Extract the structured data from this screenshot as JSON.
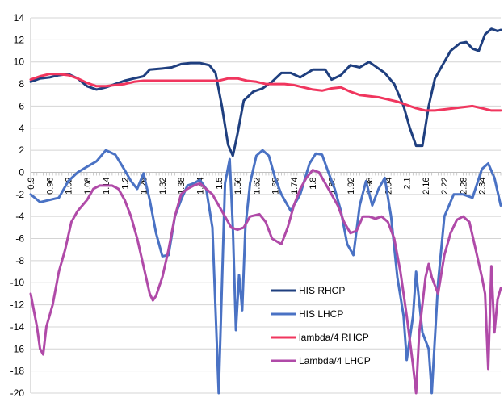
{
  "chart_data": {
    "type": "line",
    "title": "",
    "xlabel": "",
    "ylabel": "",
    "ylim": [
      -20,
      15
    ],
    "xlim": [
      0.9,
      2.4
    ],
    "yticks": [
      14,
      12,
      10,
      8,
      6,
      4,
      2,
      0,
      -2,
      -4,
      -6,
      -8,
      -10,
      -12,
      -14,
      -16,
      -18,
      -20
    ],
    "xtick_labels": [
      "0.9",
      "0.96",
      "1.02",
      "1.08",
      "1.14",
      "1.2",
      "1.26",
      "1.32",
      "1.38",
      "1.44",
      "1.5",
      "1.56",
      "1.62",
      "1.68",
      "1.74",
      "1.8",
      "1.86",
      "1.92",
      "1.98",
      "2.04",
      "2.1",
      "2.16",
      "2.22",
      "2.28",
      "2.34"
    ],
    "grid": "horizontal",
    "legend_position": "inside-bottom-center",
    "series": [
      {
        "name": "HIS RHCP",
        "color": "#1f3f7f",
        "points": [
          [
            0.9,
            8.2
          ],
          [
            0.93,
            8.5
          ],
          [
            0.96,
            8.6
          ],
          [
            0.99,
            8.8
          ],
          [
            1.02,
            8.9
          ],
          [
            1.05,
            8.5
          ],
          [
            1.08,
            7.8
          ],
          [
            1.11,
            7.5
          ],
          [
            1.14,
            7.7
          ],
          [
            1.17,
            8.0
          ],
          [
            1.2,
            8.3
          ],
          [
            1.23,
            8.5
          ],
          [
            1.26,
            8.7
          ],
          [
            1.28,
            9.3
          ],
          [
            1.32,
            9.4
          ],
          [
            1.35,
            9.5
          ],
          [
            1.38,
            9.8
          ],
          [
            1.41,
            9.9
          ],
          [
            1.44,
            9.9
          ],
          [
            1.47,
            9.7
          ],
          [
            1.49,
            9.0
          ],
          [
            1.51,
            6.0
          ],
          [
            1.53,
            2.5
          ],
          [
            1.545,
            1.5
          ],
          [
            1.56,
            3.5
          ],
          [
            1.58,
            6.5
          ],
          [
            1.61,
            7.3
          ],
          [
            1.64,
            7.6
          ],
          [
            1.67,
            8.2
          ],
          [
            1.7,
            9.0
          ],
          [
            1.73,
            9.0
          ],
          [
            1.76,
            8.6
          ],
          [
            1.8,
            9.3
          ],
          [
            1.84,
            9.3
          ],
          [
            1.86,
            8.4
          ],
          [
            1.89,
            8.8
          ],
          [
            1.92,
            9.7
          ],
          [
            1.95,
            9.5
          ],
          [
            1.98,
            10.0
          ],
          [
            2.0,
            9.6
          ],
          [
            2.03,
            9.0
          ],
          [
            2.06,
            8.0
          ],
          [
            2.09,
            6.0
          ],
          [
            2.11,
            4.0
          ],
          [
            2.13,
            2.4
          ],
          [
            2.15,
            2.4
          ],
          [
            2.17,
            6.0
          ],
          [
            2.19,
            8.5
          ],
          [
            2.21,
            9.5
          ],
          [
            2.24,
            11.0
          ],
          [
            2.27,
            11.7
          ],
          [
            2.29,
            11.8
          ],
          [
            2.31,
            11.2
          ],
          [
            2.33,
            11.0
          ],
          [
            2.35,
            12.5
          ],
          [
            2.37,
            13.0
          ],
          [
            2.39,
            12.8
          ],
          [
            2.4,
            12.9
          ]
        ]
      },
      {
        "name": "HIS LHCP",
        "color": "#4a72c4",
        "points": [
          [
            0.9,
            -2.0
          ],
          [
            0.93,
            -2.7
          ],
          [
            0.96,
            -2.5
          ],
          [
            0.99,
            -2.3
          ],
          [
            1.02,
            -0.8
          ],
          [
            1.05,
            0.0
          ],
          [
            1.08,
            0.5
          ],
          [
            1.11,
            1.0
          ],
          [
            1.14,
            2.0
          ],
          [
            1.17,
            1.6
          ],
          [
            1.2,
            0.2
          ],
          [
            1.22,
            -0.8
          ],
          [
            1.24,
            -1.5
          ],
          [
            1.26,
            -0.1
          ],
          [
            1.28,
            -2.5
          ],
          [
            1.3,
            -5.5
          ],
          [
            1.32,
            -7.6
          ],
          [
            1.34,
            -7.5
          ],
          [
            1.36,
            -4.0
          ],
          [
            1.38,
            -2.5
          ],
          [
            1.4,
            -1.2
          ],
          [
            1.42,
            -1.0
          ],
          [
            1.44,
            -0.7
          ],
          [
            1.46,
            -1.5
          ],
          [
            1.48,
            -5.0
          ],
          [
            1.5,
            -20.0
          ],
          [
            1.52,
            -1.0
          ],
          [
            1.535,
            1.2
          ],
          [
            1.545,
            -5.0
          ],
          [
            1.555,
            -14.3
          ],
          [
            1.565,
            -9.3
          ],
          [
            1.575,
            -12.5
          ],
          [
            1.585,
            -5.0
          ],
          [
            1.6,
            -1.0
          ],
          [
            1.62,
            1.5
          ],
          [
            1.64,
            2.0
          ],
          [
            1.66,
            1.5
          ],
          [
            1.68,
            -0.5
          ],
          [
            1.7,
            -2.0
          ],
          [
            1.73,
            -3.5
          ],
          [
            1.76,
            -2.0
          ],
          [
            1.79,
            0.8
          ],
          [
            1.81,
            1.7
          ],
          [
            1.83,
            1.6
          ],
          [
            1.85,
            0.0
          ],
          [
            1.87,
            -1.5
          ],
          [
            1.89,
            -3.5
          ],
          [
            1.91,
            -6.5
          ],
          [
            1.93,
            -7.5
          ],
          [
            1.95,
            -3.0
          ],
          [
            1.97,
            -0.8
          ],
          [
            1.99,
            -3.0
          ],
          [
            2.01,
            -1.5
          ],
          [
            2.03,
            -0.5
          ],
          [
            2.05,
            -4.0
          ],
          [
            2.07,
            -9.5
          ],
          [
            2.09,
            -13.0
          ],
          [
            2.1,
            -17.0
          ],
          [
            2.12,
            -13.0
          ],
          [
            2.13,
            -9.0
          ],
          [
            2.15,
            -14.5
          ],
          [
            2.17,
            -16.0
          ],
          [
            2.18,
            -20.0
          ],
          [
            2.2,
            -10.0
          ],
          [
            2.22,
            -4.0
          ],
          [
            2.25,
            -2.0
          ],
          [
            2.28,
            -2.0
          ],
          [
            2.31,
            -2.3
          ],
          [
            2.34,
            0.3
          ],
          [
            2.36,
            0.8
          ],
          [
            2.38,
            -0.5
          ],
          [
            2.4,
            -3.0
          ]
        ]
      },
      {
        "name": "lambda/4 RHCP",
        "color": "#f0365e",
        "points": [
          [
            0.9,
            8.4
          ],
          [
            0.93,
            8.7
          ],
          [
            0.96,
            8.9
          ],
          [
            0.99,
            8.9
          ],
          [
            1.02,
            8.8
          ],
          [
            1.05,
            8.5
          ],
          [
            1.08,
            8.1
          ],
          [
            1.11,
            7.8
          ],
          [
            1.14,
            7.8
          ],
          [
            1.17,
            7.9
          ],
          [
            1.2,
            8.0
          ],
          [
            1.23,
            8.2
          ],
          [
            1.26,
            8.3
          ],
          [
            1.29,
            8.3
          ],
          [
            1.32,
            8.3
          ],
          [
            1.35,
            8.3
          ],
          [
            1.38,
            8.3
          ],
          [
            1.41,
            8.3
          ],
          [
            1.44,
            8.3
          ],
          [
            1.47,
            8.3
          ],
          [
            1.5,
            8.3
          ],
          [
            1.53,
            8.5
          ],
          [
            1.56,
            8.5
          ],
          [
            1.59,
            8.3
          ],
          [
            1.62,
            8.2
          ],
          [
            1.65,
            8.0
          ],
          [
            1.68,
            8.0
          ],
          [
            1.71,
            8.0
          ],
          [
            1.74,
            7.9
          ],
          [
            1.77,
            7.7
          ],
          [
            1.8,
            7.5
          ],
          [
            1.83,
            7.4
          ],
          [
            1.86,
            7.6
          ],
          [
            1.89,
            7.7
          ],
          [
            1.92,
            7.3
          ],
          [
            1.95,
            7.0
          ],
          [
            1.98,
            6.9
          ],
          [
            2.01,
            6.8
          ],
          [
            2.04,
            6.6
          ],
          [
            2.07,
            6.4
          ],
          [
            2.1,
            6.1
          ],
          [
            2.13,
            5.8
          ],
          [
            2.16,
            5.6
          ],
          [
            2.19,
            5.6
          ],
          [
            2.22,
            5.7
          ],
          [
            2.25,
            5.8
          ],
          [
            2.28,
            5.9
          ],
          [
            2.31,
            6.0
          ],
          [
            2.34,
            5.8
          ],
          [
            2.37,
            5.6
          ],
          [
            2.4,
            5.6
          ]
        ]
      },
      {
        "name": "Lambda/4 LHCP",
        "color": "#b04aa8",
        "points": [
          [
            0.9,
            -11.0
          ],
          [
            0.91,
            -12.5
          ],
          [
            0.92,
            -14.0
          ],
          [
            0.93,
            -16.0
          ],
          [
            0.94,
            -16.5
          ],
          [
            0.95,
            -14.0
          ],
          [
            0.97,
            -12.0
          ],
          [
            0.99,
            -9.0
          ],
          [
            1.01,
            -7.0
          ],
          [
            1.03,
            -4.5
          ],
          [
            1.05,
            -3.5
          ],
          [
            1.08,
            -2.5
          ],
          [
            1.1,
            -1.5
          ],
          [
            1.12,
            -1.2
          ],
          [
            1.14,
            -1.2
          ],
          [
            1.16,
            -1.2
          ],
          [
            1.18,
            -1.5
          ],
          [
            1.2,
            -2.5
          ],
          [
            1.22,
            -4.0
          ],
          [
            1.24,
            -6.0
          ],
          [
            1.26,
            -8.5
          ],
          [
            1.28,
            -11.0
          ],
          [
            1.29,
            -11.6
          ],
          [
            1.3,
            -11.2
          ],
          [
            1.32,
            -9.5
          ],
          [
            1.34,
            -7.0
          ],
          [
            1.36,
            -4.0
          ],
          [
            1.38,
            -2.0
          ],
          [
            1.4,
            -1.5
          ],
          [
            1.42,
            -1.2
          ],
          [
            1.44,
            -1.0
          ],
          [
            1.46,
            -1.5
          ],
          [
            1.48,
            -2.0
          ],
          [
            1.5,
            -3.0
          ],
          [
            1.52,
            -4.0
          ],
          [
            1.54,
            -5.0
          ],
          [
            1.56,
            -5.2
          ],
          [
            1.58,
            -5.0
          ],
          [
            1.6,
            -4.0
          ],
          [
            1.63,
            -3.8
          ],
          [
            1.65,
            -4.5
          ],
          [
            1.67,
            -6.0
          ],
          [
            1.7,
            -6.5
          ],
          [
            1.72,
            -5.0
          ],
          [
            1.74,
            -3.0
          ],
          [
            1.76,
            -1.5
          ],
          [
            1.78,
            -0.5
          ],
          [
            1.8,
            0.2
          ],
          [
            1.82,
            0.0
          ],
          [
            1.84,
            -1.0
          ],
          [
            1.86,
            -2.0
          ],
          [
            1.88,
            -3.0
          ],
          [
            1.9,
            -4.5
          ],
          [
            1.92,
            -5.5
          ],
          [
            1.94,
            -5.3
          ],
          [
            1.96,
            -4.0
          ],
          [
            1.98,
            -4.0
          ],
          [
            2.0,
            -4.2
          ],
          [
            2.02,
            -4.0
          ],
          [
            2.04,
            -4.5
          ],
          [
            2.06,
            -6.0
          ],
          [
            2.08,
            -9.0
          ],
          [
            2.1,
            -13.0
          ],
          [
            2.12,
            -17.5
          ],
          [
            2.13,
            -20.0
          ],
          [
            2.14,
            -14.5
          ],
          [
            2.15,
            -12.0
          ],
          [
            2.16,
            -9.5
          ],
          [
            2.17,
            -8.3
          ],
          [
            2.18,
            -9.5
          ],
          [
            2.2,
            -11.0
          ],
          [
            2.22,
            -7.5
          ],
          [
            2.24,
            -5.5
          ],
          [
            2.26,
            -4.3
          ],
          [
            2.28,
            -4.0
          ],
          [
            2.3,
            -4.5
          ],
          [
            2.32,
            -7.0
          ],
          [
            2.34,
            -9.5
          ],
          [
            2.35,
            -11.0
          ],
          [
            2.36,
            -17.8
          ],
          [
            2.37,
            -8.5
          ],
          [
            2.38,
            -14.5
          ],
          [
            2.39,
            -11.5
          ],
          [
            2.4,
            -10.5
          ]
        ]
      }
    ]
  }
}
